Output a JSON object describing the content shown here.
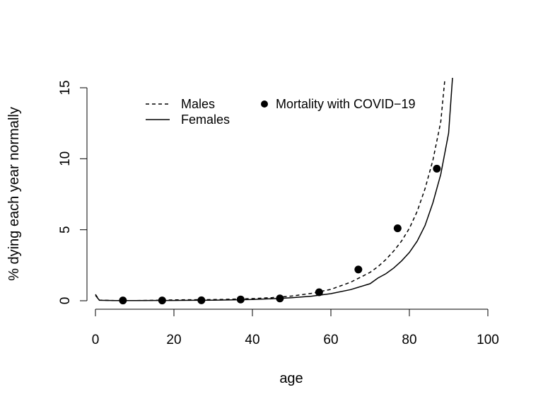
{
  "chart_data": {
    "type": "line",
    "title": "",
    "xlabel": "age",
    "ylabel": "% dying each year normally",
    "xlim": [
      0,
      100
    ],
    "ylim": [
      0,
      15
    ],
    "xticks": [
      "0",
      "20",
      "40",
      "60",
      "80",
      "100"
    ],
    "yticks": [
      "0",
      "5",
      "10",
      "15"
    ],
    "grid": false,
    "legend_position": "top",
    "series": [
      {
        "name": "Males",
        "style": "dashed",
        "x": [
          0,
          1,
          5,
          10,
          15,
          20,
          25,
          30,
          35,
          40,
          45,
          50,
          55,
          60,
          65,
          70,
          72,
          74,
          76,
          78,
          80,
          82,
          84,
          86,
          88,
          89
        ],
        "y": [
          0.45,
          0.04,
          0.01,
          0.01,
          0.03,
          0.06,
          0.07,
          0.08,
          0.11,
          0.15,
          0.22,
          0.33,
          0.52,
          0.8,
          1.3,
          2.0,
          2.4,
          2.9,
          3.5,
          4.2,
          5.1,
          6.3,
          7.9,
          9.9,
          12.6,
          15.5
        ]
      },
      {
        "name": "Females",
        "style": "solid",
        "x": [
          0,
          1,
          5,
          10,
          15,
          20,
          25,
          30,
          35,
          40,
          45,
          50,
          55,
          60,
          65,
          70,
          72,
          74,
          76,
          78,
          80,
          82,
          84,
          86,
          88,
          90,
          91
        ],
        "y": [
          0.38,
          0.03,
          0.01,
          0.01,
          0.02,
          0.02,
          0.03,
          0.04,
          0.06,
          0.09,
          0.14,
          0.21,
          0.32,
          0.5,
          0.78,
          1.2,
          1.6,
          1.9,
          2.3,
          2.8,
          3.4,
          4.2,
          5.3,
          6.9,
          8.9,
          11.8,
          15.7
        ]
      },
      {
        "name": "Mortality with COVID−19",
        "style": "points",
        "x": [
          7,
          17,
          27,
          37,
          47,
          57,
          67,
          77,
          87
        ],
        "y": [
          0.02,
          0.02,
          0.03,
          0.09,
          0.16,
          0.6,
          2.2,
          5.1,
          9.3
        ]
      }
    ]
  }
}
